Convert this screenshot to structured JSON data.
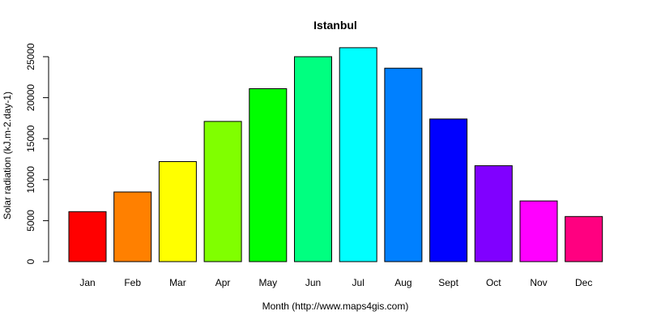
{
  "chart_data": {
    "type": "bar",
    "title": "Istanbul",
    "xlabel": "Month (http://www.maps4gis.com)",
    "ylabel": "Solar radiation (kJ.m-2.day-1)",
    "categories": [
      "Jan",
      "Feb",
      "Mar",
      "Apr",
      "May",
      "Jun",
      "Jul",
      "Aug",
      "Sept",
      "Oct",
      "Nov",
      "Dec"
    ],
    "values": [
      6100,
      8500,
      12200,
      17100,
      21100,
      25000,
      26100,
      23600,
      17400,
      11700,
      7400,
      5500
    ],
    "colors": [
      "#FF0000",
      "#FF8000",
      "#FFFF00",
      "#80FF00",
      "#00FF00",
      "#00FF80",
      "#00FFFF",
      "#0080FF",
      "#0000FF",
      "#8000FF",
      "#FF00FF",
      "#FF0080"
    ],
    "ylim": [
      0,
      27000
    ],
    "yticks": [
      0,
      5000,
      10000,
      15000,
      20000,
      25000
    ],
    "grid": false,
    "legend": "none"
  }
}
